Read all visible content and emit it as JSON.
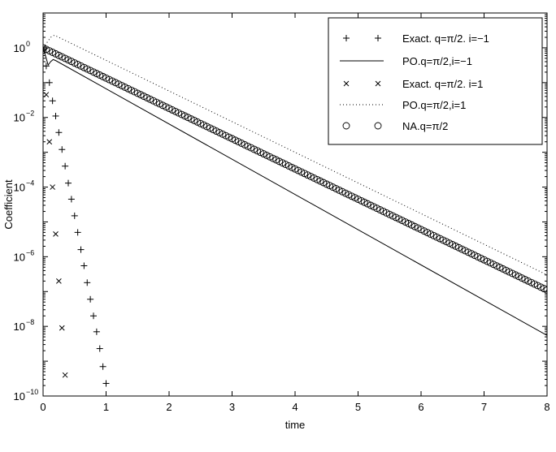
{
  "chart_data": {
    "type": "scatter",
    "title": "",
    "xlabel": "time",
    "ylabel": "Coefficient",
    "xlim": [
      0,
      8
    ],
    "ylim": [
      1e-10,
      10
    ],
    "yscale": "log",
    "grid": false,
    "legend_position": "top-right",
    "x_ticks": [
      0,
      1,
      2,
      3,
      4,
      5,
      6,
      7,
      8
    ],
    "x_tick_labels": [
      "0",
      "1",
      "2",
      "3",
      "4",
      "5",
      "6",
      "7",
      "8"
    ],
    "y_ticks": [
      1e-10,
      1e-08,
      1e-06,
      0.0001,
      0.01,
      1
    ],
    "y_tick_labels": [
      {
        "base": "10",
        "exp": "−10"
      },
      {
        "base": "10",
        "exp": "−8"
      },
      {
        "base": "10",
        "exp": "−6"
      },
      {
        "base": "10",
        "exp": "−4"
      },
      {
        "base": "10",
        "exp": "−2"
      },
      {
        "base": "10",
        "exp": "0"
      }
    ],
    "series": [
      {
        "name": "Exact. q=π/2. i=−1",
        "style": "plus",
        "x": [
          0.0,
          0.05,
          0.1,
          0.15,
          0.2,
          0.25,
          0.3,
          0.35,
          0.4,
          0.45,
          0.5,
          0.55,
          0.6,
          0.65,
          0.7,
          0.75,
          0.8,
          0.85,
          0.9,
          0.95,
          1.0
        ],
        "y": [
          1.0,
          0.3,
          0.1,
          0.03,
          0.011,
          0.0037,
          0.0012,
          0.0004,
          0.00013,
          4.5e-05,
          1.5e-05,
          5e-06,
          1.6e-06,
          5.5e-07,
          1.8e-07,
          6e-08,
          2e-08,
          7e-09,
          2.3e-09,
          7e-10,
          2.3e-10
        ]
      },
      {
        "name": "PO.q=π/2,i=−1",
        "style": "solid",
        "x": [
          0.0,
          0.05,
          0.08,
          0.12,
          0.16,
          0.2,
          8.0
        ],
        "y": [
          1.0,
          0.5,
          0.32,
          0.4,
          0.46,
          0.43,
          5.5e-09
        ]
      },
      {
        "name": "Exact. q=π/2. i=1",
        "style": "cross",
        "x": [
          0.0,
          0.05,
          0.1,
          0.15,
          0.2,
          0.25,
          0.3,
          0.35
        ],
        "y": [
          1.0,
          0.045,
          0.002,
          0.0001,
          4.5e-06,
          2e-07,
          9e-09,
          4e-10
        ]
      },
      {
        "name": "PO.q=π/2,i=1",
        "style": "dotted",
        "x": [
          0.0,
          0.06,
          0.12,
          0.18,
          8.0
        ],
        "y": [
          1.0,
          1.4,
          2.0,
          2.3,
          3e-07
        ]
      },
      {
        "name": "NA.q=π/2",
        "style": "circle",
        "x_start": 0,
        "x_end": 8,
        "x_step": 0.05,
        "y_start": 1.0,
        "y_end": 1.1e-07
      }
    ]
  }
}
